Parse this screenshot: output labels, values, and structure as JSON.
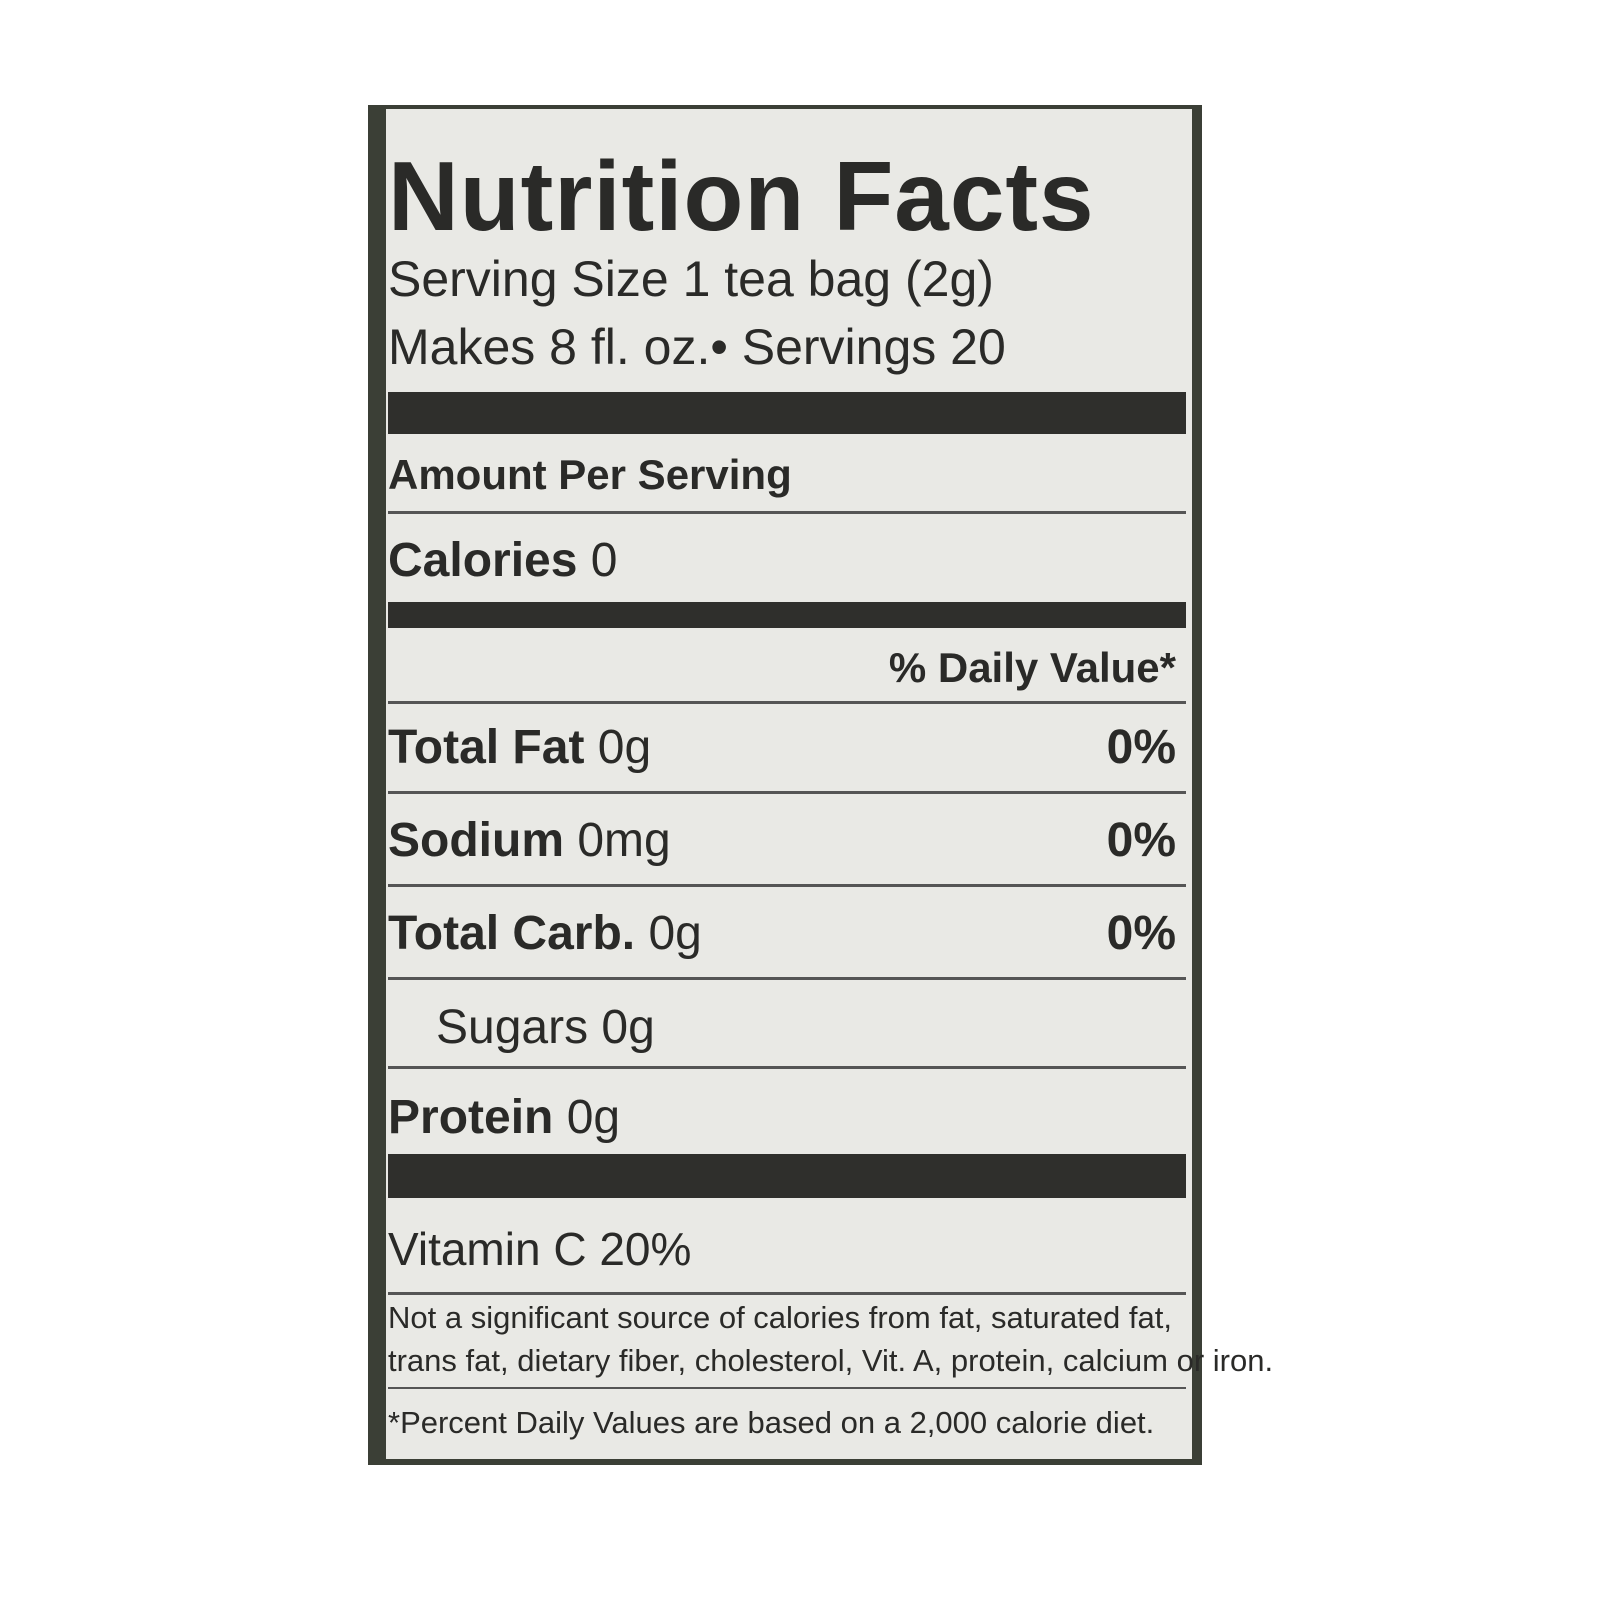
{
  "title": "Nutrition Facts",
  "serving_size": "Serving Size 1 tea bag (2g)",
  "makes": "Makes 8 fl. oz.• Servings 20",
  "amount_header": "Amount Per Serving",
  "calories": {
    "label": "Calories",
    "value": "0"
  },
  "dv_header": "% Daily Value*",
  "rows": [
    {
      "name": "Total Fat",
      "amount": "0g",
      "dv": "0%"
    },
    {
      "name": "Sodium",
      "amount": "0mg",
      "dv": "0%"
    },
    {
      "name": "Total Carb.",
      "amount": "0g",
      "dv": "0%"
    }
  ],
  "sugars": "Sugars 0g",
  "protein": {
    "name": "Protein",
    "amount": "0g"
  },
  "vitamin": "Vitamin C 20%",
  "footnote": [
    "Not a significant source of calories from fat, saturated fat,",
    "trans fat, dietary fiber, cholesterol, Vit. A, protein, calcium or iron."
  ],
  "dv_note": "*Percent Daily Values are based on a 2,000 calorie diet."
}
